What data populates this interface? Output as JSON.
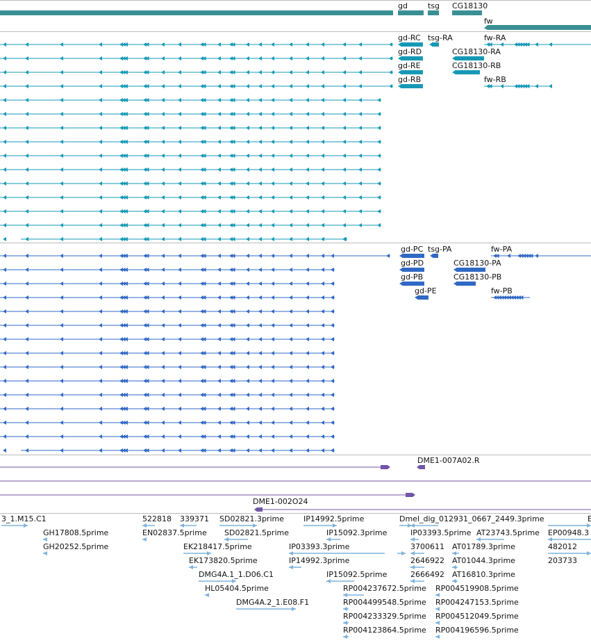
{
  "colors": {
    "gene": "#3a8f94",
    "transcript_teal": "#1699b6",
    "transcript_blue": "#3169c4",
    "clone": "#7256a8",
    "est": "#7fb2db",
    "divider": "#bcbcbc"
  },
  "gene_track": {
    "labels": [
      "gd",
      "tsg",
      "CG18130",
      "fw"
    ]
  },
  "transcript_track_1": {
    "labels": [
      "gd-RC",
      "tsg-RA",
      "fw-RA",
      "gd-RD",
      "CG18130-RA",
      "gd-RE",
      "CG18130-RB",
      "gd-RB",
      "fw-RB"
    ]
  },
  "transcript_track_2": {
    "labels": [
      "gd-PC",
      "tsg-PA",
      "fw-PA",
      "gd-PD",
      "CG18130-PA",
      "gd-PB",
      "CG18130-PB",
      "gd-PE",
      "fw-PB"
    ]
  },
  "clone_track": {
    "labels": [
      "DME1-007A02.R",
      "DME1-002O24"
    ]
  },
  "est_track": {
    "labels": [
      "3_1.M15.C1",
      "522818",
      "339371",
      "SD02821.3prime",
      "IP14992.5prime",
      "Dmel_dig_012931_0667_2449.3prime",
      "E",
      "GH17808.5prime",
      "EN02837.5prime",
      "SD02821.5prime",
      "IP15092.3prime",
      "IP03393.5prime",
      "AT23743.5prime",
      "EP00948.3",
      "GH20252.5prime",
      "EK218417.5prime",
      "IP03393.3prime",
      "3700611",
      "AT01789.3prime",
      "482012",
      "EK173820.5prime",
      "IP14992.3prime",
      "2646922",
      "AT01044.3prime",
      "203733",
      "DMG4A.1_1.D06.C1",
      "IP15092.5prime",
      "2666492",
      "AT16810.3prime",
      "HL05404.5prime",
      "RP004237672.5prime",
      "RP004519908.5prime",
      "DMG4A.2_1.E08.F1",
      "RP004499548.5prime",
      "RP004247153.5prime",
      "RP004233329.5prime",
      "RP004512049.5prime",
      "RP004123864.5prime",
      "RP004196596.5prime"
    ]
  }
}
